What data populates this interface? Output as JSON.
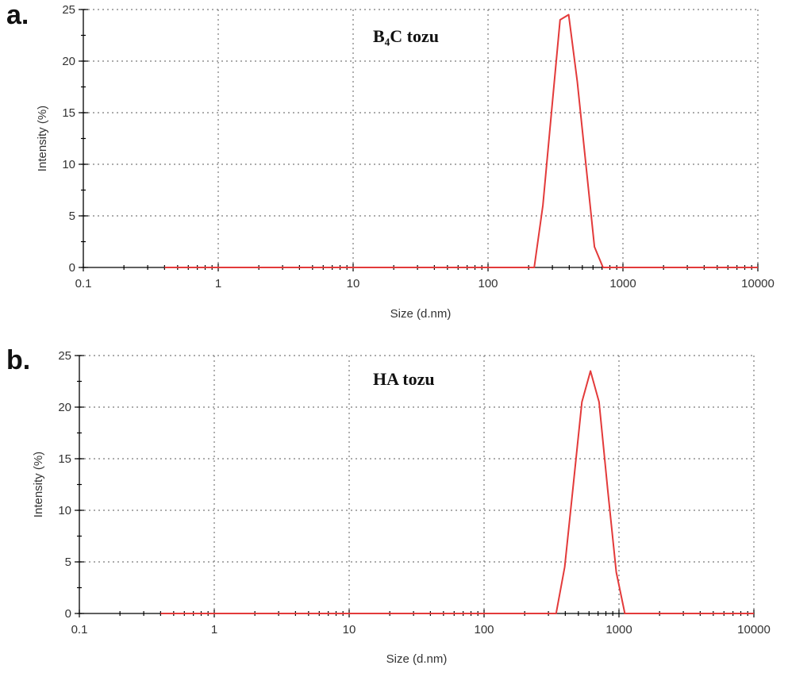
{
  "chart_data": [
    {
      "type": "line",
      "panel_label": "a.",
      "annotation": "B₄C tozu",
      "xlabel": "Size (d.nm)",
      "ylabel": "Intensity (%)",
      "x_scale": "log",
      "xlim": [
        0.1,
        10000
      ],
      "ylim": [
        0,
        25
      ],
      "x_ticks": [
        "0.1",
        "1",
        "10",
        "100",
        "1000",
        "10000"
      ],
      "y_ticks": [
        "0",
        "5",
        "10",
        "15",
        "20",
        "25"
      ],
      "grid": true,
      "color": "#e33a3a",
      "series": [
        {
          "x": [
            0.4,
            100,
            220,
            255,
            295,
            342,
            396,
            459,
            531,
            615,
            712
          ],
          "y": [
            0,
            0,
            0,
            6,
            15,
            24,
            24.5,
            18,
            10,
            2,
            0
          ],
          "x_end": 10000
        }
      ]
    },
    {
      "type": "line",
      "panel_label": "b.",
      "annotation": "HA tozu",
      "xlabel": "Size (d.nm)",
      "ylabel": "Intensity (%)",
      "x_scale": "log",
      "xlim": [
        0.1,
        10000
      ],
      "ylim": [
        0,
        25
      ],
      "x_ticks": [
        "0.1",
        "1",
        "10",
        "100",
        "1000",
        "10000"
      ],
      "y_ticks": [
        "0",
        "5",
        "10",
        "15",
        "20",
        "25"
      ],
      "grid": true,
      "color": "#e33a3a",
      "series": [
        {
          "x": [
            0.4,
            100,
            342,
            396,
            459,
            531,
            615,
            712,
            825,
            955,
            1106
          ],
          "y": [
            0,
            0,
            0,
            4.5,
            12.5,
            20.5,
            23.5,
            20.5,
            12,
            4,
            0
          ],
          "x_end": 10000
        }
      ]
    }
  ]
}
